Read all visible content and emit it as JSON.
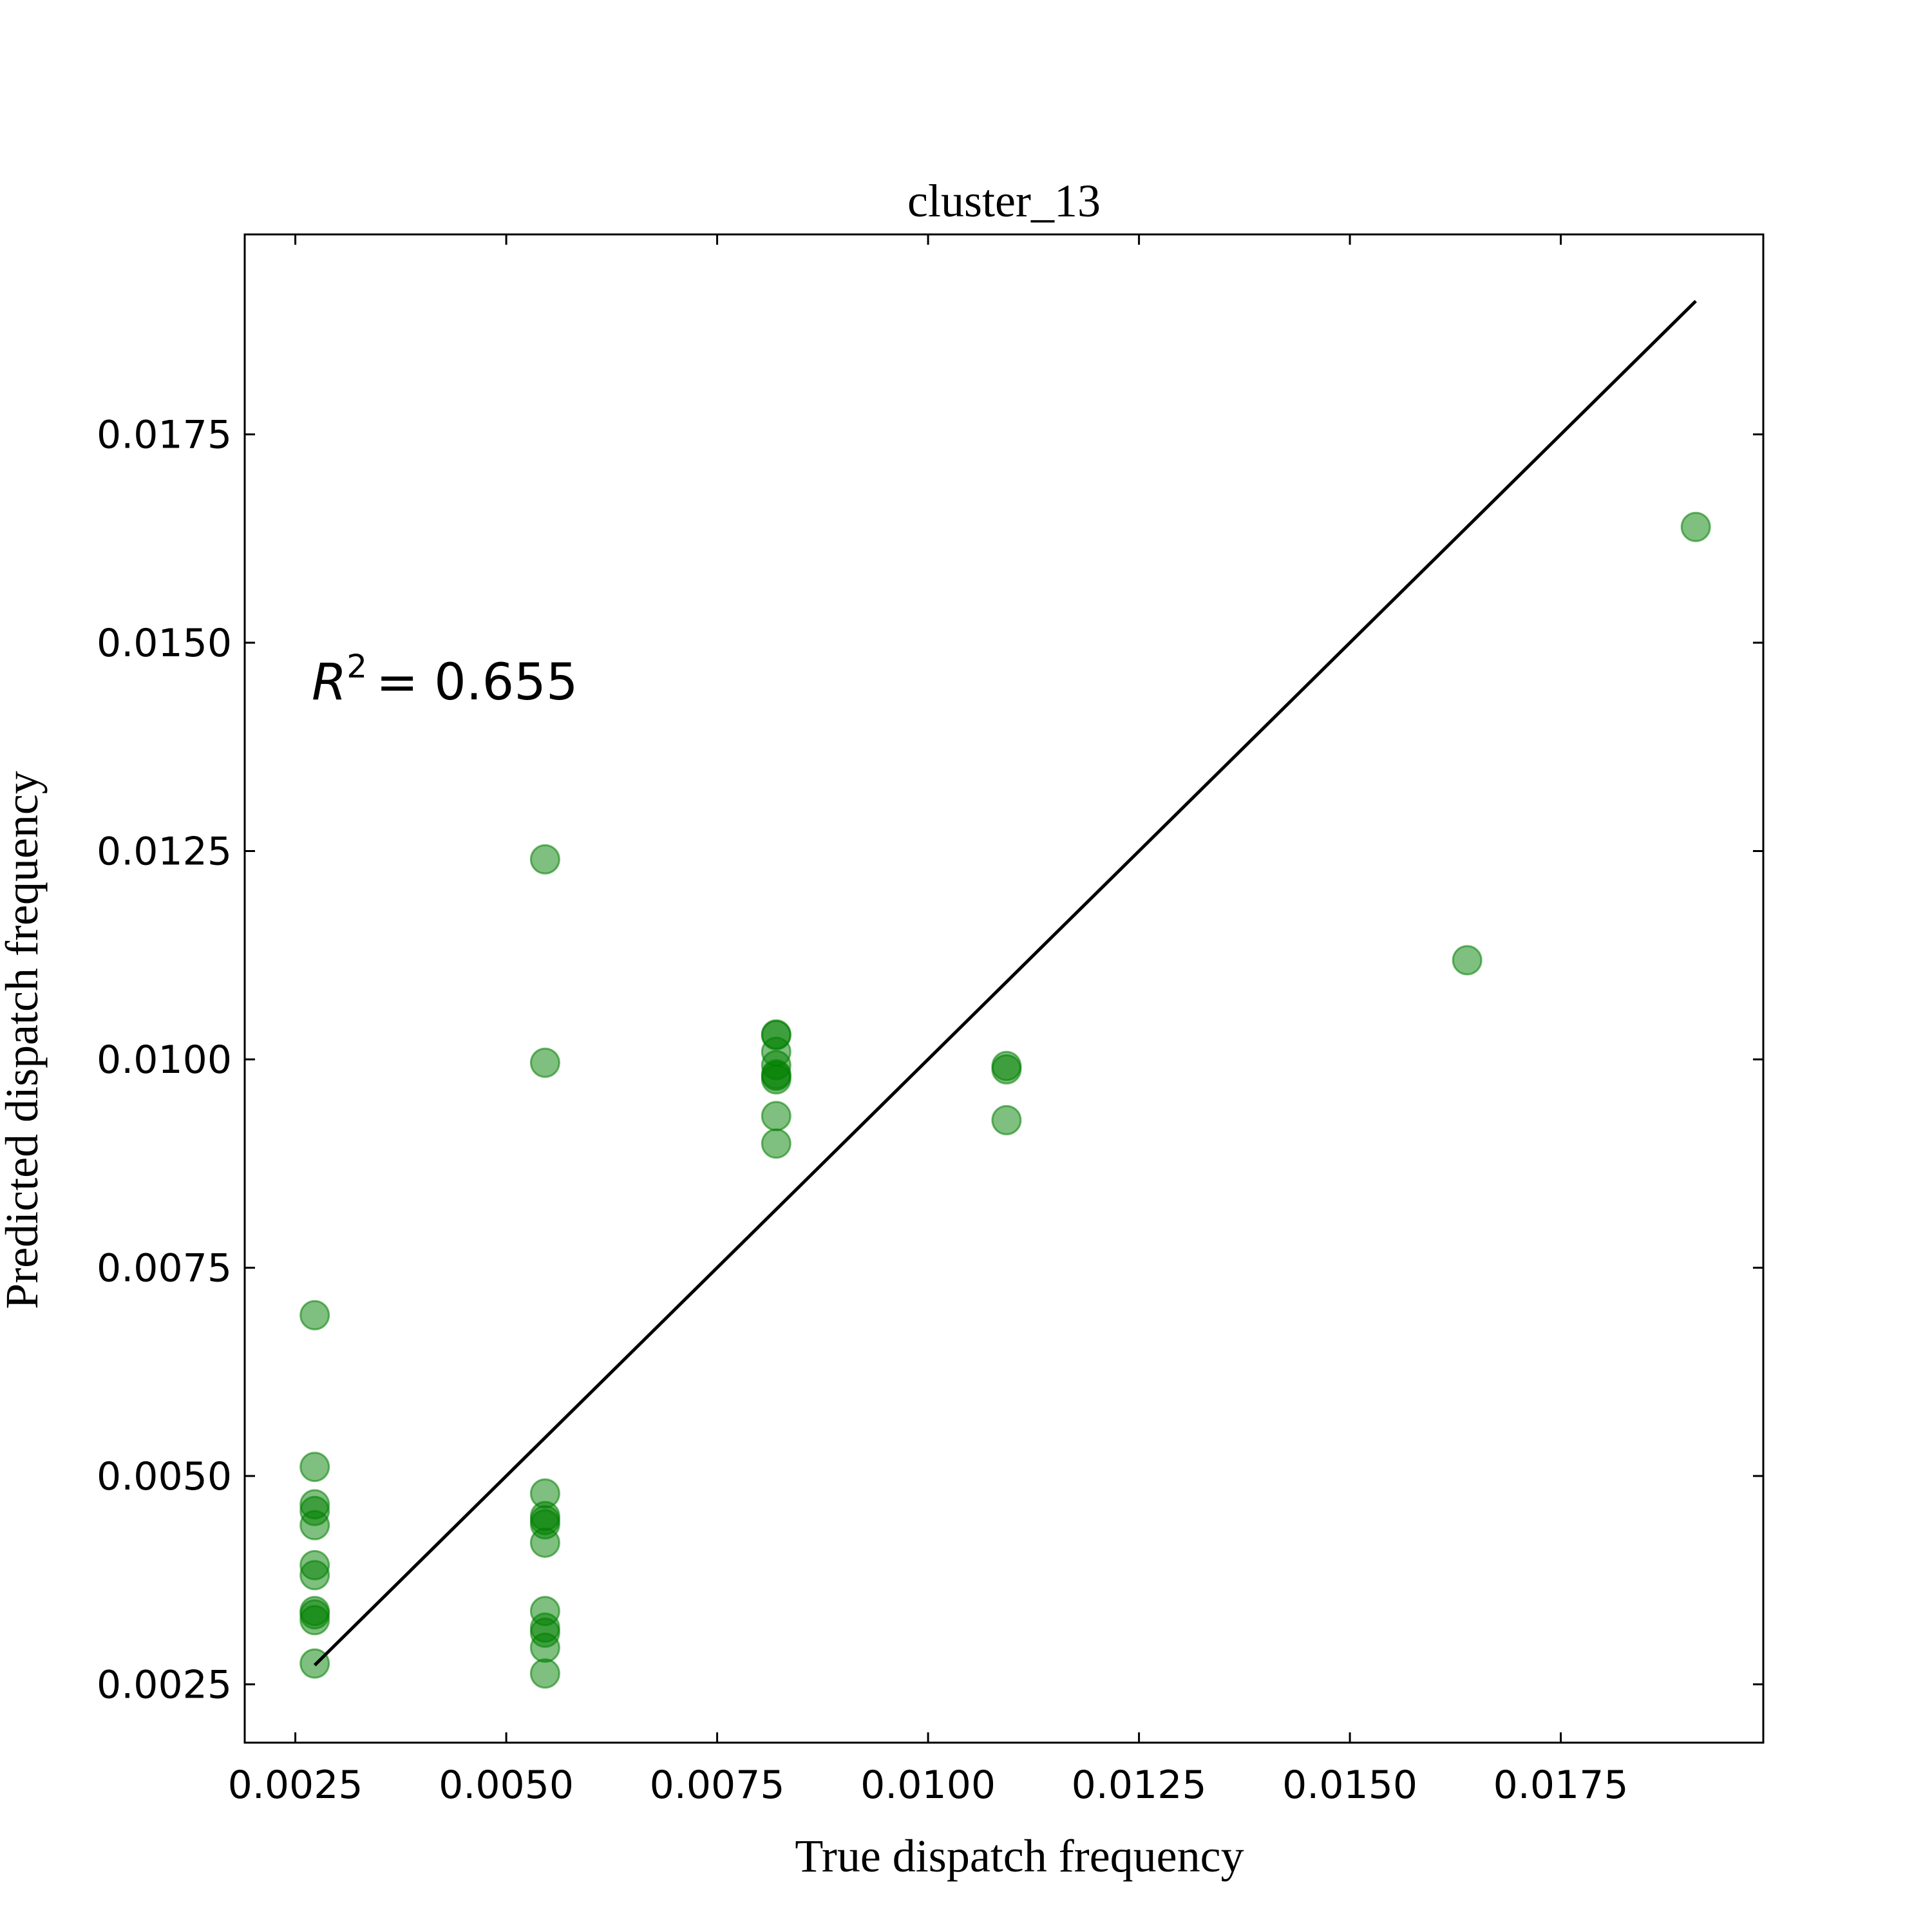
{
  "chart_data": {
    "type": "scatter",
    "title": "cluster_13",
    "xlabel": "True dispatch frequency",
    "ylabel": "Predicted dispatch frequency",
    "xlim": [
      0.0019,
      0.0199
    ],
    "ylim": [
      0.0018,
      0.0199
    ],
    "x_ticks": [
      0.0025,
      0.005,
      0.0075,
      0.01,
      0.0125,
      0.015,
      0.0175
    ],
    "x_tick_labels": [
      "0.0025",
      "0.0050",
      "0.0075",
      "0.0100",
      "0.0125",
      "0.0150",
      "0.0175"
    ],
    "y_ticks": [
      0.0025,
      0.005,
      0.0075,
      0.01,
      0.0125,
      0.015,
      0.0175
    ],
    "y_tick_labels": [
      "0.0025",
      "0.0050",
      "0.0075",
      "0.0100",
      "0.0125",
      "0.0150",
      "0.0175"
    ],
    "grid": false,
    "marker_color": "#008000",
    "marker_alpha": 0.5,
    "line_color": "#000000",
    "reference_line": {
      "x": [
        0.00273,
        0.0191
      ],
      "y": [
        0.00273,
        0.0191
      ]
    },
    "annotation": {
      "symbol": "R",
      "superscript": "2",
      "text": "= 0.655",
      "position": "upper-left"
    },
    "points": [
      {
        "x": 0.00273,
        "y": 0.00693
      },
      {
        "x": 0.00273,
        "y": 0.00511
      },
      {
        "x": 0.00273,
        "y": 0.00466
      },
      {
        "x": 0.00273,
        "y": 0.00458
      },
      {
        "x": 0.00273,
        "y": 0.00441
      },
      {
        "x": 0.00273,
        "y": 0.00393
      },
      {
        "x": 0.00273,
        "y": 0.00381
      },
      {
        "x": 0.00273,
        "y": 0.00338
      },
      {
        "x": 0.00273,
        "y": 0.00334
      },
      {
        "x": 0.00273,
        "y": 0.00327
      },
      {
        "x": 0.00273,
        "y": 0.00275
      },
      {
        "x": 0.00546,
        "y": 0.0124
      },
      {
        "x": 0.00546,
        "y": 0.00996
      },
      {
        "x": 0.00546,
        "y": 0.00479
      },
      {
        "x": 0.00546,
        "y": 0.00452
      },
      {
        "x": 0.00546,
        "y": 0.00447
      },
      {
        "x": 0.00546,
        "y": 0.00442
      },
      {
        "x": 0.00546,
        "y": 0.0042
      },
      {
        "x": 0.00546,
        "y": 0.00338
      },
      {
        "x": 0.00546,
        "y": 0.00318
      },
      {
        "x": 0.00546,
        "y": 0.00312
      },
      {
        "x": 0.00546,
        "y": 0.00294
      },
      {
        "x": 0.00546,
        "y": 0.00263
      },
      {
        "x": 0.0082,
        "y": 0.0103
      },
      {
        "x": 0.0082,
        "y": 0.01029
      },
      {
        "x": 0.0082,
        "y": 0.01009
      },
      {
        "x": 0.0082,
        "y": 0.00993
      },
      {
        "x": 0.0082,
        "y": 0.00982
      },
      {
        "x": 0.0082,
        "y": 0.0098
      },
      {
        "x": 0.0082,
        "y": 0.00976
      },
      {
        "x": 0.0082,
        "y": 0.00932
      },
      {
        "x": 0.0082,
        "y": 0.00899
      },
      {
        "x": 0.01093,
        "y": 0.00992
      },
      {
        "x": 0.01093,
        "y": 0.00988
      },
      {
        "x": 0.01093,
        "y": 0.00927
      },
      {
        "x": 0.01639,
        "y": 0.01119
      },
      {
        "x": 0.0191,
        "y": 0.01639
      }
    ]
  }
}
